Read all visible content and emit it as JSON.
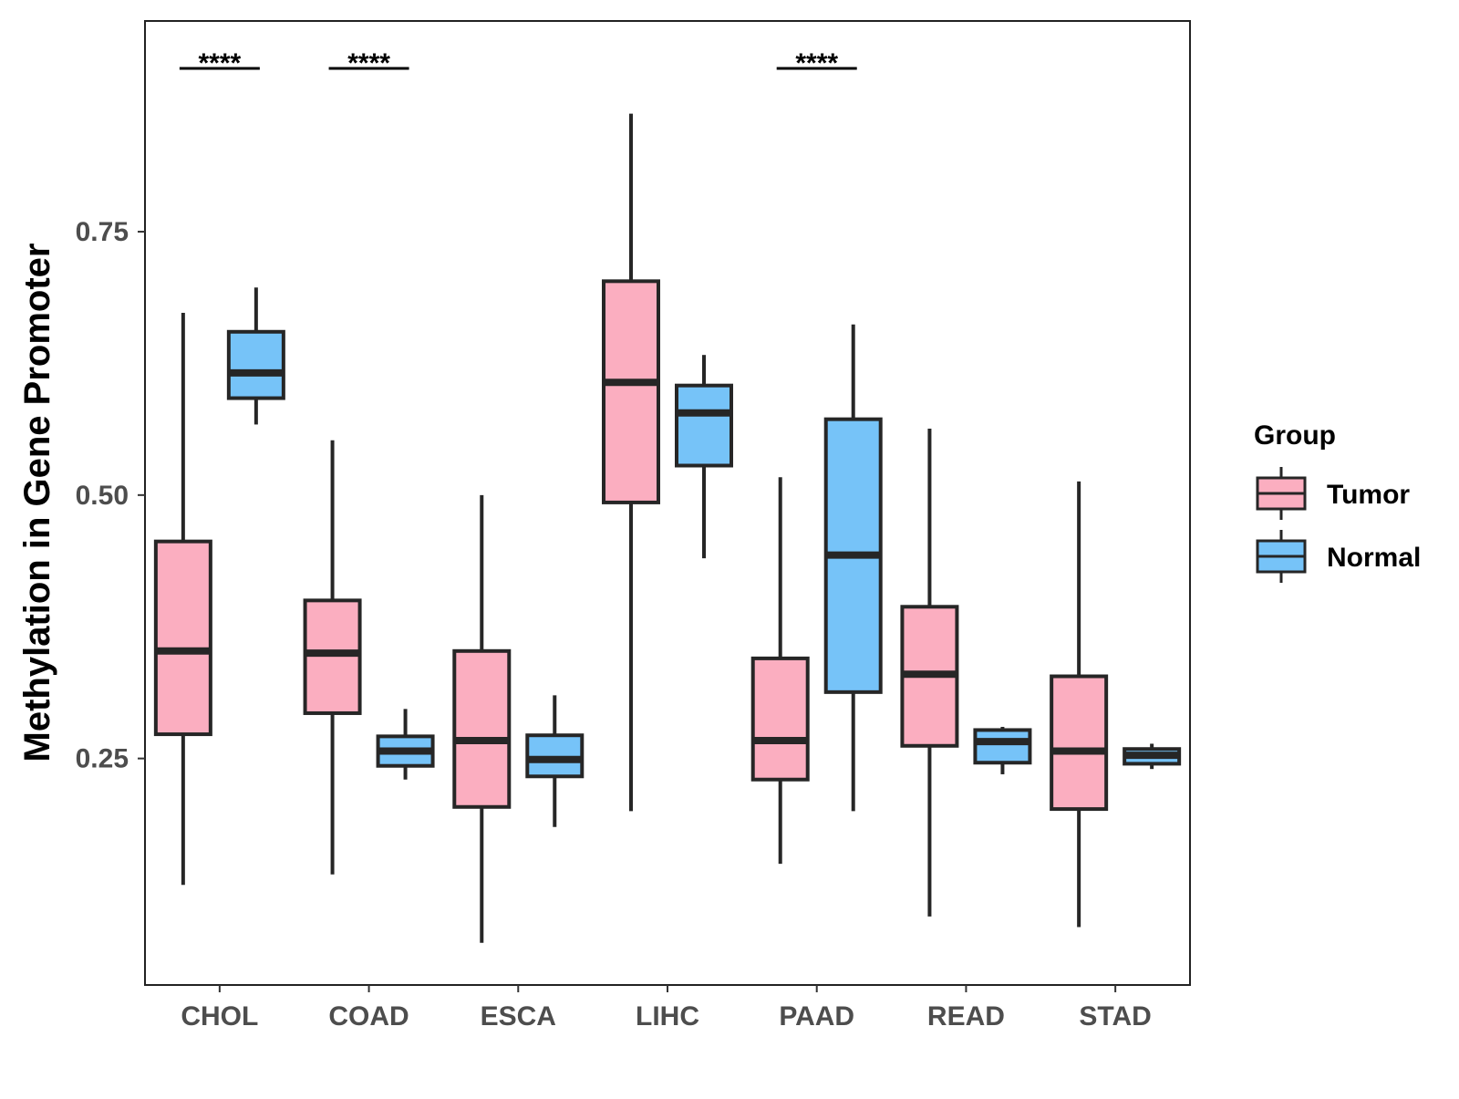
{
  "chart_data": {
    "type": "boxplot",
    "title": "",
    "xlabel": "",
    "ylabel": "Methylation in Gene Promoter",
    "ylim": [
      0.035,
      0.95
    ],
    "y_ticks": [
      0.25,
      0.5,
      0.75
    ],
    "y_tick_labels": [
      "0.25",
      "0.50",
      "0.75"
    ],
    "categories": [
      "CHOL",
      "COAD",
      "ESCA",
      "LIHC",
      "PAAD",
      "READ",
      "STAD"
    ],
    "grid": false,
    "legend": {
      "title": "Group",
      "position": "right",
      "entries": [
        "Tumor",
        "Normal"
      ]
    },
    "colors": {
      "Tumor": "#fbaec0",
      "Normal": "#76c3f8",
      "outline": "#262626"
    },
    "series": [
      {
        "name": "Tumor",
        "boxes": [
          {
            "category": "CHOL",
            "min": 0.13,
            "q1": 0.273,
            "median": 0.352,
            "q3": 0.456,
            "max": 0.673
          },
          {
            "category": "COAD",
            "min": 0.14,
            "q1": 0.293,
            "median": 0.35,
            "q3": 0.4,
            "max": 0.552
          },
          {
            "category": "ESCA",
            "min": 0.075,
            "q1": 0.204,
            "median": 0.267,
            "q3": 0.352,
            "max": 0.5
          },
          {
            "category": "LIHC",
            "min": 0.2,
            "q1": 0.493,
            "median": 0.607,
            "q3": 0.703,
            "max": 0.862
          },
          {
            "category": "PAAD",
            "min": 0.15,
            "q1": 0.23,
            "median": 0.267,
            "q3": 0.345,
            "max": 0.517
          },
          {
            "category": "READ",
            "min": 0.1,
            "q1": 0.262,
            "median": 0.33,
            "q3": 0.394,
            "max": 0.563
          },
          {
            "category": "STAD",
            "min": 0.09,
            "q1": 0.202,
            "median": 0.257,
            "q3": 0.328,
            "max": 0.513
          }
        ]
      },
      {
        "name": "Normal",
        "boxes": [
          {
            "category": "CHOL",
            "min": 0.567,
            "q1": 0.592,
            "median": 0.616,
            "q3": 0.655,
            "max": 0.697
          },
          {
            "category": "COAD",
            "min": 0.23,
            "q1": 0.243,
            "median": 0.257,
            "q3": 0.271,
            "max": 0.297
          },
          {
            "category": "ESCA",
            "min": 0.185,
            "q1": 0.233,
            "median": 0.249,
            "q3": 0.272,
            "max": 0.31
          },
          {
            "category": "LIHC",
            "min": 0.44,
            "q1": 0.528,
            "median": 0.578,
            "q3": 0.604,
            "max": 0.633
          },
          {
            "category": "PAAD",
            "min": 0.2,
            "q1": 0.313,
            "median": 0.443,
            "q3": 0.572,
            "max": 0.662
          },
          {
            "category": "READ",
            "min": 0.235,
            "q1": 0.246,
            "median": 0.266,
            "q3": 0.277,
            "max": 0.28
          },
          {
            "category": "STAD",
            "min": 0.24,
            "q1": 0.245,
            "median": 0.253,
            "q3": 0.259,
            "max": 0.264
          }
        ]
      }
    ],
    "annotations": [
      {
        "category": "CHOL",
        "label": "****"
      },
      {
        "category": "COAD",
        "label": "****"
      },
      {
        "category": "PAAD",
        "label": "****"
      }
    ]
  }
}
